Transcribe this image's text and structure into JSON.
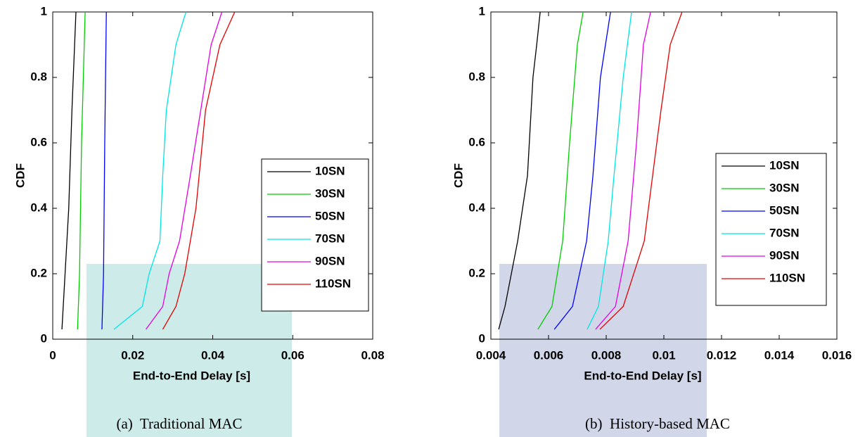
{
  "chart_data": [
    {
      "type": "line",
      "caption": "(a)  Traditional MAC",
      "x_label": "End-to-End Delay [s]",
      "y_label": "CDF",
      "xlim": [
        0,
        0.08
      ],
      "xticks": [
        0,
        0.02,
        0.04,
        0.06,
        0.08
      ],
      "ylim": [
        0,
        1
      ],
      "yticks": [
        0,
        0.2,
        0.4,
        0.6,
        0.8,
        1
      ],
      "series": [
        {
          "name": "10SN",
          "color": "#000000",
          "x": [
            0.0023,
            0.004,
            0.0048,
            0.0058
          ],
          "values": [
            0.03,
            0.4,
            0.7,
            1
          ]
        },
        {
          "name": "30SN",
          "color": "#00cc00",
          "x": [
            0.0062,
            0.0067,
            0.0072,
            0.0081
          ],
          "values": [
            0.03,
            0.2,
            0.6,
            1
          ]
        },
        {
          "name": "50SN",
          "color": "#0000ff",
          "x": [
            0.0123,
            0.0127,
            0.013,
            0.0134
          ],
          "values": [
            0.03,
            0.2,
            0.6,
            1
          ]
        },
        {
          "name": "70SN",
          "color": "#00e5e5",
          "x": [
            0.0153,
            0.0224,
            0.0241,
            0.0268,
            0.0275,
            0.0284,
            0.0308,
            0.0333
          ],
          "values": [
            0.03,
            0.1,
            0.2,
            0.3,
            0.5,
            0.7,
            0.9,
            1
          ]
        },
        {
          "name": "90SN",
          "color": "#e500e5",
          "x": [
            0.0233,
            0.0275,
            0.0291,
            0.0317,
            0.0344,
            0.037,
            0.0396,
            0.0423
          ],
          "values": [
            0.03,
            0.1,
            0.2,
            0.3,
            0.5,
            0.7,
            0.9,
            1
          ]
        },
        {
          "name": "110SN",
          "color": "#e50000",
          "x": [
            0.0275,
            0.0308,
            0.033,
            0.0358,
            0.0382,
            0.0418,
            0.0455
          ],
          "values": [
            0.03,
            0.1,
            0.2,
            0.4,
            0.7,
            0.9,
            1
          ]
        }
      ]
    },
    {
      "type": "line",
      "caption": "(b)  History-based MAC",
      "x_label": "End-to-End Delay [s]",
      "y_label": "CDF",
      "xlim": [
        0.004,
        0.016
      ],
      "xticks": [
        0.004,
        0.006,
        0.008,
        0.01,
        0.012,
        0.014,
        0.016
      ],
      "ylim": [
        0,
        1
      ],
      "yticks": [
        0,
        0.2,
        0.4,
        0.6,
        0.8,
        1
      ],
      "series": [
        {
          "name": "10SN",
          "color": "#000000",
          "x": [
            0.00427,
            0.00449,
            0.00493,
            0.00527,
            0.00546,
            0.00559,
            0.00571
          ],
          "values": [
            0.03,
            0.1,
            0.3,
            0.5,
            0.8,
            0.9,
            1
          ]
        },
        {
          "name": "30SN",
          "color": "#00cc00",
          "x": [
            0.00563,
            0.00612,
            0.00649,
            0.00673,
            0.007,
            0.0072
          ],
          "values": [
            0.03,
            0.1,
            0.3,
            0.6,
            0.9,
            1
          ]
        },
        {
          "name": "50SN",
          "color": "#0000ff",
          "x": [
            0.0062,
            0.00683,
            0.00732,
            0.00754,
            0.0078,
            0.00815
          ],
          "values": [
            0.03,
            0.1,
            0.3,
            0.5,
            0.8,
            1
          ]
        },
        {
          "name": "70SN",
          "color": "#00e5e5",
          "x": [
            0.00734,
            0.00773,
            0.00807,
            0.00827,
            0.00859,
            0.00888
          ],
          "values": [
            0.03,
            0.1,
            0.3,
            0.5,
            0.8,
            1
          ]
        },
        {
          "name": "90SN",
          "color": "#e500e5",
          "x": [
            0.00763,
            0.00832,
            0.00876,
            0.00905,
            0.00929,
            0.00954
          ],
          "values": [
            0.03,
            0.1,
            0.3,
            0.6,
            0.9,
            1
          ]
        },
        {
          "name": "110SN",
          "color": "#e50000",
          "x": [
            0.00778,
            0.00859,
            0.00932,
            0.0099,
            0.01022,
            0.01063
          ],
          "values": [
            0.03,
            0.1,
            0.3,
            0.7,
            0.9,
            1
          ]
        }
      ]
    }
  ]
}
